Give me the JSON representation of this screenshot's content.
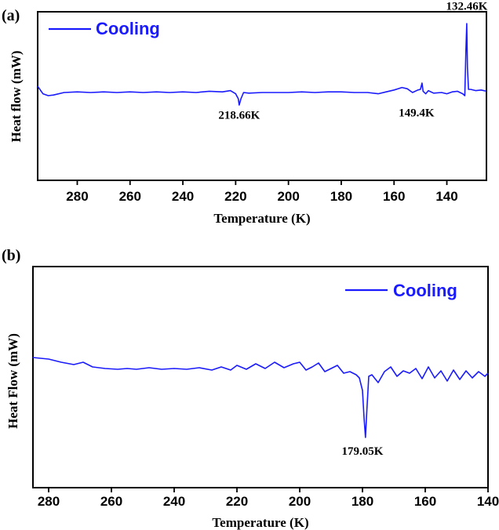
{
  "chart_data": [
    {
      "type": "line",
      "panel_label": "(a)",
      "xlabel": "Temperature (K)",
      "ylabel": "Heat flow (mW)",
      "xlim": [
        295,
        125
      ],
      "xticks": [
        280,
        260,
        240,
        220,
        200,
        180,
        160,
        140
      ],
      "ylim": [
        -1,
        1
      ],
      "legend": {
        "label": "Cooling",
        "position": "top-left",
        "color": "#1a1aff"
      },
      "series": [
        {
          "color": "#1a1aff",
          "x": [
            295,
            293,
            291,
            289,
            285,
            280,
            275,
            270,
            265,
            260,
            255,
            250,
            245,
            240,
            235,
            230,
            225,
            222,
            220,
            219,
            218.66,
            218,
            217,
            215,
            210,
            205,
            200,
            195,
            190,
            185,
            180,
            175,
            170,
            166,
            163,
            160,
            157,
            155,
            153,
            151,
            150,
            149.4,
            149,
            148,
            147,
            145,
            142,
            140,
            138,
            136,
            134,
            133.2,
            132.8,
            132.46,
            132.2,
            131.8,
            131,
            129,
            127,
            125
          ],
          "y": [
            0.0,
            -0.12,
            -0.15,
            -0.14,
            -0.1,
            -0.09,
            -0.1,
            -0.09,
            -0.1,
            -0.09,
            -0.1,
            -0.09,
            -0.1,
            -0.09,
            -0.1,
            -0.08,
            -0.09,
            -0.07,
            -0.12,
            -0.2,
            -0.3,
            -0.2,
            -0.1,
            -0.11,
            -0.1,
            -0.1,
            -0.1,
            -0.09,
            -0.1,
            -0.09,
            -0.09,
            -0.1,
            -0.1,
            -0.12,
            -0.09,
            -0.06,
            -0.02,
            -0.04,
            -0.1,
            -0.06,
            -0.05,
            0.05,
            -0.08,
            -0.12,
            -0.07,
            -0.11,
            -0.1,
            -0.12,
            -0.09,
            -0.08,
            -0.12,
            -0.15,
            0.55,
            1.0,
            0.3,
            -0.05,
            -0.05,
            -0.07,
            -0.06,
            -0.08
          ]
        }
      ],
      "annotations": [
        {
          "text": "218.66K",
          "x": 218.66,
          "y": -0.52
        },
        {
          "text": "149.4K",
          "x": 151.5,
          "y": -0.48
        },
        {
          "text": "132.46K",
          "x": 132.46,
          "y": 1.22
        }
      ]
    },
    {
      "type": "line",
      "panel_label": "(b)",
      "xlabel": "Temperature (K)",
      "ylabel": "Heat Flow (mW)",
      "xlim": [
        285,
        140
      ],
      "xticks": [
        280,
        260,
        240,
        220,
        200,
        180,
        160,
        140
      ],
      "ylim": [
        -1,
        1
      ],
      "legend": {
        "label": "Cooling",
        "position": "top-right",
        "color": "#1a1aff"
      },
      "series": [
        {
          "color": "#1a1aff",
          "x": [
            285,
            280,
            276,
            272,
            269,
            266,
            262,
            258,
            255,
            252,
            248,
            244,
            240,
            236,
            232,
            228,
            225,
            222,
            220,
            217,
            214,
            211,
            208,
            205,
            202,
            200,
            198,
            196,
            194,
            192,
            190,
            188,
            186,
            184,
            182,
            181,
            180,
            179.5,
            179.05,
            178.6,
            178,
            177,
            175,
            173,
            171,
            169,
            167,
            165,
            163,
            161,
            159,
            157,
            155,
            153,
            151,
            149,
            147,
            145,
            143,
            141,
            140
          ],
          "y": [
            0.12,
            0.1,
            0.06,
            0.03,
            0.06,
            0.0,
            -0.02,
            -0.03,
            -0.02,
            -0.03,
            -0.01,
            -0.03,
            -0.02,
            -0.03,
            -0.01,
            -0.04,
            0.0,
            -0.04,
            0.02,
            -0.03,
            0.04,
            -0.02,
            0.06,
            -0.01,
            0.04,
            0.06,
            -0.04,
            0.0,
            0.05,
            -0.06,
            -0.02,
            0.02,
            -0.08,
            -0.06,
            -0.1,
            -0.14,
            -0.3,
            -0.65,
            -0.9,
            -0.55,
            -0.12,
            -0.1,
            -0.2,
            -0.06,
            0.0,
            -0.12,
            -0.05,
            -0.08,
            -0.02,
            -0.15,
            0.0,
            -0.14,
            -0.05,
            -0.18,
            -0.04,
            -0.16,
            -0.05,
            -0.14,
            -0.06,
            -0.12,
            -0.08
          ]
        }
      ],
      "annotations": [
        {
          "text": "179.05K",
          "x": 180,
          "y": -1.12
        }
      ]
    }
  ]
}
